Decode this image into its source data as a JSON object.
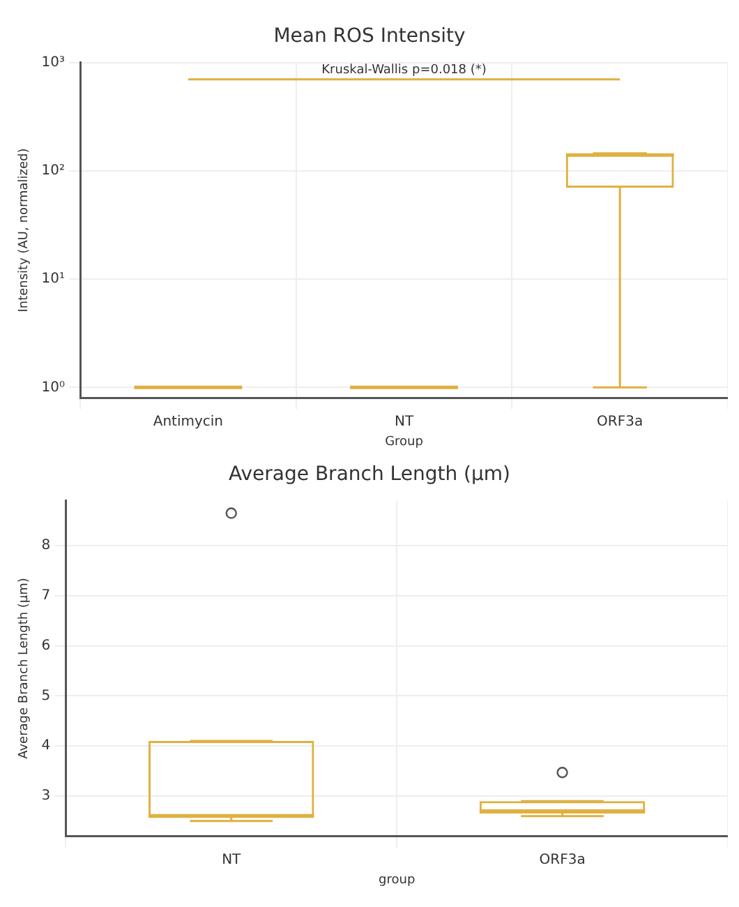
{
  "chart_data": [
    {
      "type": "box",
      "title": "Mean ROS Intensity",
      "xlabel": "Group",
      "ylabel": "Intensity (AU, normalized)",
      "annotations": [
        "Kruskal-Wallis p=0.018 (*)"
      ],
      "ref_lines": [
        {
          "axis": "y",
          "value": 700,
          "color": "#e0b040"
        }
      ],
      "categories": [
        "Antimycin",
        "NT",
        "ORF3a"
      ],
      "log": "y",
      "ylim": [
        0.8,
        1000
      ],
      "yticks": [
        {
          "value": 1,
          "label": "10⁰"
        },
        {
          "value": 10,
          "label": "10¹"
        },
        {
          "value": 100,
          "label": "10²"
        },
        {
          "value": 1000,
          "label": "10³"
        }
      ],
      "grid": true,
      "legend": false,
      "series": [
        {
          "color": "#e0b040",
          "boxes": [
            {
              "low": 1,
              "q1": 1,
              "median": 1,
              "q3": 1,
              "high": 1
            },
            {
              "low": 1,
              "q1": 1,
              "median": 1,
              "q3": 1,
              "high": 1
            },
            {
              "low": 1,
              "q1": 70,
              "median": 140,
              "q3": 145,
              "high": 145
            }
          ]
        }
      ]
    },
    {
      "type": "box",
      "title": "Average Branch Length (µm)",
      "xlabel": "group",
      "ylabel": "Average Branch Length (µm)",
      "categories": [
        "NT",
        "ORF3a"
      ],
      "ylim": [
        2.2,
        8.9
      ],
      "yticks": [
        3,
        4,
        5,
        6,
        7,
        8
      ],
      "grid": true,
      "legend": false,
      "series": [
        {
          "color": "#e0b040",
          "boxes": [
            {
              "low": 2.5,
              "q1": 2.6,
              "median": 2.6,
              "q3": 4.1,
              "high": 4.1,
              "outliers": [
                8.65
              ]
            },
            {
              "low": 2.6,
              "q1": 2.65,
              "median": 2.7,
              "q3": 2.9,
              "high": 2.9,
              "outliers": [
                3.47
              ]
            }
          ]
        }
      ]
    }
  ]
}
